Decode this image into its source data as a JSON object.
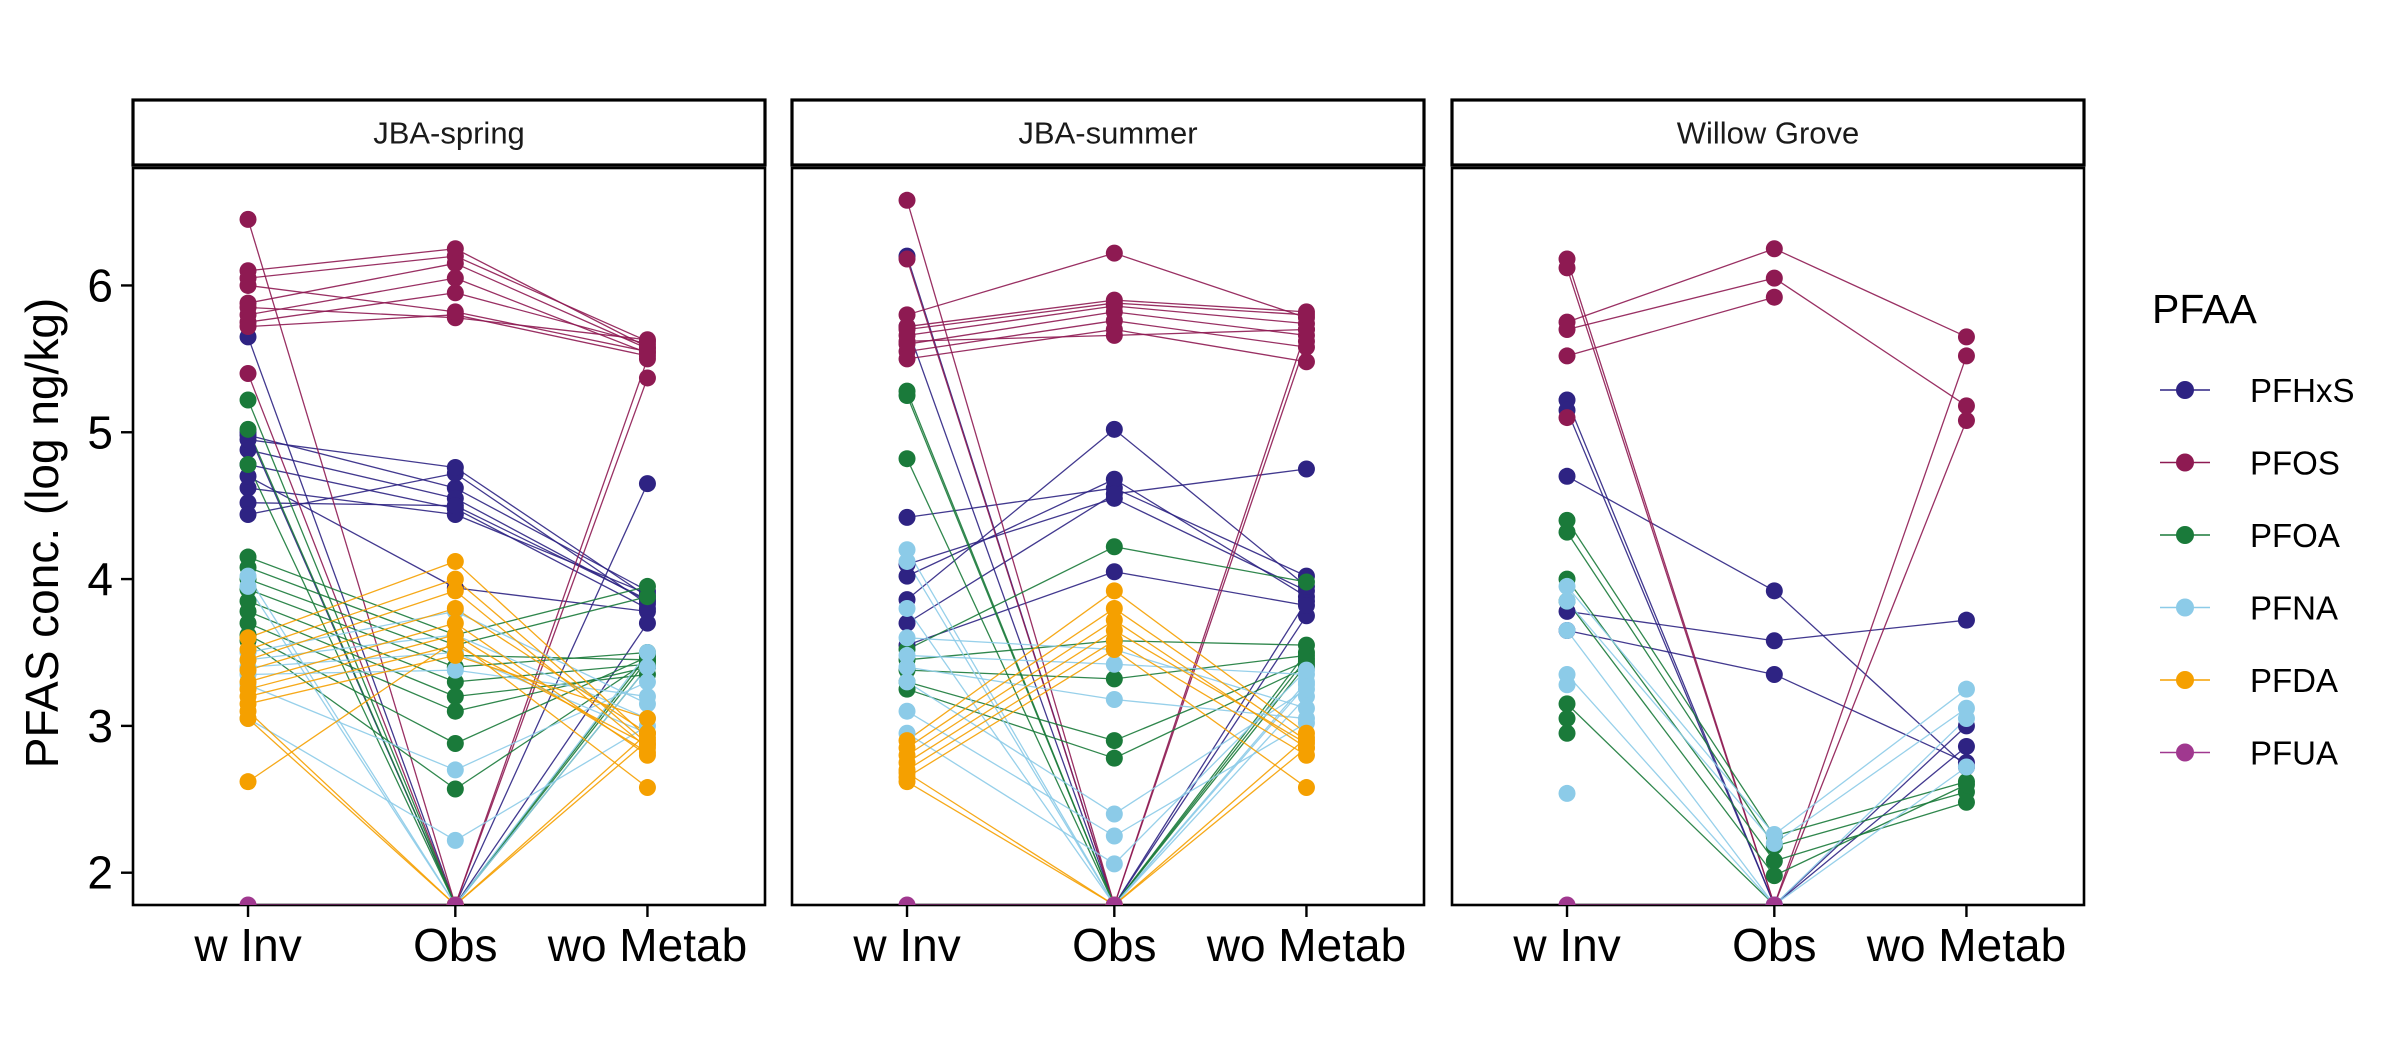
{
  "chart_data": {
    "type": "line",
    "ylabel": "PFAS conc. (log ng/kg)",
    "ylim": [
      1.78,
      6.8
    ],
    "y_ticks": [
      2,
      3,
      4,
      5,
      6
    ],
    "categories": [
      "w Inv",
      "Obs",
      "wo Metab"
    ],
    "legend": {
      "title": "PFAA",
      "position": "right",
      "entries": [
        {
          "name": "PFHxS",
          "color": "#2e2383"
        },
        {
          "name": "PFOS",
          "color": "#8e1a52"
        },
        {
          "name": "PFOA",
          "color": "#1a7a3a"
        },
        {
          "name": "PFNA",
          "color": "#8ccbe8"
        },
        {
          "name": "PFDA",
          "color": "#f5a000"
        },
        {
          "name": "PFUA",
          "color": "#a0388f"
        }
      ]
    },
    "panels": [
      {
        "title": "JBA-spring",
        "series": [
          {
            "compound": "PFHxS",
            "values": [
              [
                4.98,
                4.62,
                3.92
              ],
              [
                4.88,
                4.55,
                3.85
              ],
              [
                4.78,
                4.48,
                3.8
              ],
              [
                4.62,
                4.44,
                3.9
              ],
              [
                4.52,
                4.5,
                3.86
              ],
              [
                4.44,
                4.72,
                3.83
              ],
              [
                4.95,
                4.76,
                3.88
              ],
              [
                4.7,
                3.94,
                3.78
              ],
              [
                5.0,
                1.78,
                3.7
              ],
              [
                5.65,
                1.78,
                4.65
              ]
            ]
          },
          {
            "compound": "PFOS",
            "values": [
              [
                6.1,
                6.25,
                5.58
              ],
              [
                6.05,
                6.2,
                5.62
              ],
              [
                5.88,
                6.15,
                5.57
              ],
              [
                5.8,
                6.05,
                5.54
              ],
              [
                5.75,
                5.95,
                5.6
              ],
              [
                5.72,
                5.8,
                5.52
              ],
              [
                5.85,
                5.78,
                5.63
              ],
              [
                6.0,
                5.82,
                5.55
              ],
              [
                6.45,
                1.78,
                5.37
              ],
              [
                5.4,
                1.78,
                5.5
              ]
            ]
          },
          {
            "compound": "PFOA",
            "values": [
              [
                5.22,
                1.78,
                3.48
              ],
              [
                5.02,
                1.78,
                3.45
              ],
              [
                4.78,
                1.78,
                3.4
              ],
              [
                4.15,
                3.62,
                3.95
              ],
              [
                4.08,
                3.55,
                3.88
              ],
              [
                4.0,
                3.48,
                3.45
              ],
              [
                3.93,
                3.4,
                3.5
              ],
              [
                3.85,
                3.3,
                3.42
              ],
              [
                3.78,
                3.2,
                3.35
              ],
              [
                3.7,
                3.1,
                3.4
              ],
              [
                3.62,
                2.88,
                3.47
              ],
              [
                3.58,
                2.57,
                3.44
              ]
            ]
          },
          {
            "compound": "PFNA",
            "values": [
              [
                4.02,
                1.78,
                3.5
              ],
              [
                3.95,
                1.78,
                3.4
              ],
              [
                3.5,
                3.78,
                3.15
              ],
              [
                3.45,
                3.62,
                3.05
              ],
              [
                3.4,
                3.5,
                2.95
              ],
              [
                3.35,
                3.38,
                3.2
              ],
              [
                3.28,
                2.7,
                3.3
              ],
              [
                3.05,
                2.22,
                3.0
              ]
            ]
          },
          {
            "compound": "PFDA",
            "values": [
              [
                3.6,
                4.12,
                2.92
              ],
              [
                3.52,
                4.0,
                2.88
              ],
              [
                3.45,
                3.92,
                2.85
              ],
              [
                3.38,
                3.8,
                2.95
              ],
              [
                3.3,
                3.7,
                2.8
              ],
              [
                3.25,
                3.62,
                2.82
              ],
              [
                3.2,
                3.55,
                2.87
              ],
              [
                3.15,
                3.48,
                3.05
              ],
              [
                3.1,
                1.78,
                2.95
              ],
              [
                3.05,
                1.78,
                2.9
              ],
              [
                2.62,
                3.58,
                2.58
              ]
            ]
          },
          {
            "compound": "PFUA",
            "values": [
              [
                1.78,
                1.78,
                null
              ]
            ]
          }
        ]
      },
      {
        "title": "JBA-summer",
        "series": [
          {
            "compound": "PFHxS",
            "values": [
              [
                6.2,
                1.78,
                3.85
              ],
              [
                5.72,
                1.78,
                3.75
              ],
              [
                4.42,
                4.62,
                4.02
              ],
              [
                4.1,
                4.55,
                3.92
              ],
              [
                4.02,
                4.68,
                3.88
              ],
              [
                3.86,
                5.02,
                3.95
              ],
              [
                3.7,
                4.58,
                4.75
              ],
              [
                3.55,
                4.05,
                3.82
              ]
            ]
          },
          {
            "compound": "PFOS",
            "values": [
              [
                6.58,
                1.78,
                5.7
              ],
              [
                6.18,
                1.78,
                5.62
              ],
              [
                5.8,
                6.22,
                5.78
              ],
              [
                5.72,
                5.9,
                5.82
              ],
              [
                5.66,
                5.86,
                5.74
              ],
              [
                5.6,
                5.82,
                5.66
              ],
              [
                5.55,
                5.76,
                5.58
              ],
              [
                5.5,
                5.7,
                5.48
              ],
              [
                5.62,
                5.66,
                5.7
              ],
              [
                5.7,
                5.88,
                5.8
              ]
            ]
          },
          {
            "compound": "PFOA",
            "values": [
              [
                5.28,
                1.78,
                3.5
              ],
              [
                5.25,
                1.78,
                3.46
              ],
              [
                4.82,
                1.78,
                3.42
              ],
              [
                3.52,
                4.22,
                3.98
              ],
              [
                3.45,
                3.58,
                3.55
              ],
              [
                3.38,
                3.32,
                3.48
              ],
              [
                3.3,
                2.9,
                3.44
              ],
              [
                3.25,
                2.78,
                3.4
              ]
            ]
          },
          {
            "compound": "PFNA",
            "values": [
              [
                4.2,
                1.78,
                3.3
              ],
              [
                4.12,
                1.78,
                3.2
              ],
              [
                3.8,
                1.78,
                3.28
              ],
              [
                3.48,
                3.42,
                3.35
              ],
              [
                3.4,
                3.18,
                3.05
              ],
              [
                3.3,
                2.4,
                3.25
              ],
              [
                3.1,
                2.25,
                3.02
              ],
              [
                2.95,
                2.06,
                3.38
              ],
              [
                3.6,
                3.52,
                3.12
              ]
            ]
          },
          {
            "compound": "PFDA",
            "values": [
              [
                2.9,
                3.92,
                2.95
              ],
              [
                2.85,
                3.8,
                2.9
              ],
              [
                2.8,
                3.72,
                2.85
              ],
              [
                2.75,
                3.65,
                2.88
              ],
              [
                2.7,
                3.58,
                2.8
              ],
              [
                2.65,
                3.52,
                2.58
              ],
              [
                2.62,
                1.78,
                2.92
              ],
              [
                2.68,
                1.78,
                2.85
              ]
            ]
          },
          {
            "compound": "PFUA",
            "values": [
              [
                1.78,
                1.78,
                null
              ]
            ]
          }
        ]
      },
      {
        "title": "Willow Grove",
        "series": [
          {
            "compound": "PFHxS",
            "values": [
              [
                5.22,
                1.78,
                3.0
              ],
              [
                5.15,
                1.78,
                2.86
              ],
              [
                4.7,
                3.92,
                2.72
              ],
              [
                3.78,
                3.58,
                3.72
              ],
              [
                3.65,
                3.35,
                2.75
              ]
            ]
          },
          {
            "compound": "PFOS",
            "values": [
              [
                6.18,
                1.78,
                5.52
              ],
              [
                6.12,
                1.78,
                5.08
              ],
              [
                5.75,
                6.25,
                5.65
              ],
              [
                5.7,
                6.05,
                5.18
              ],
              [
                5.52,
                5.92,
                null
              ],
              [
                5.1,
                null,
                null
              ]
            ]
          },
          {
            "compound": "PFOA",
            "values": [
              [
                4.4,
                2.25,
                2.62
              ],
              [
                4.32,
                2.18,
                2.55
              ],
              [
                4.0,
                2.08,
                2.48
              ],
              [
                3.85,
                1.98,
                2.6
              ],
              [
                3.15,
                1.78,
                null
              ],
              [
                3.05,
                null,
                null
              ],
              [
                2.95,
                null,
                null
              ]
            ]
          },
          {
            "compound": "PFNA",
            "values": [
              [
                3.95,
                2.26,
                3.25
              ],
              [
                3.85,
                2.2,
                3.12
              ],
              [
                3.65,
                1.78,
                3.05
              ],
              [
                3.35,
                1.78,
                2.72
              ],
              [
                3.28,
                null,
                null
              ],
              [
                2.54,
                null,
                null
              ]
            ]
          },
          {
            "compound": "PFUA",
            "values": [
              [
                1.78,
                1.78,
                null
              ]
            ]
          }
        ]
      }
    ]
  }
}
